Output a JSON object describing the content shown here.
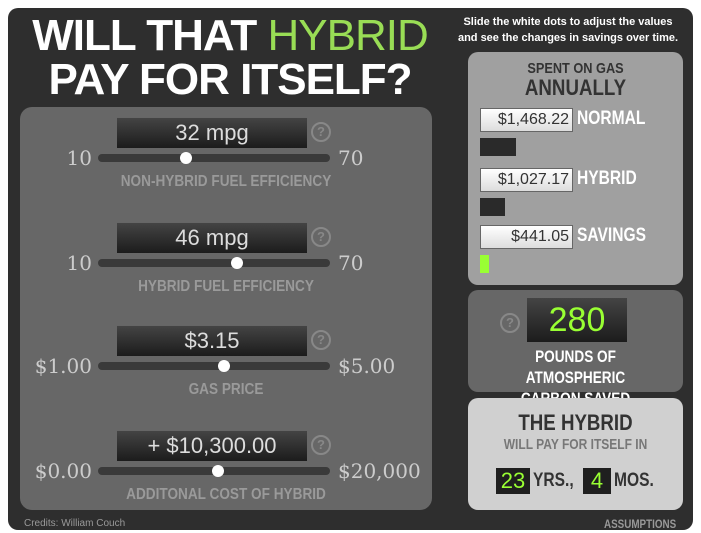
{
  "header": {
    "title_start": "WILL THAT",
    "title_highlight": "HYBRID",
    "title_line2": "PAY FOR ITSELF?"
  },
  "instructions": [
    "Slide the white dots to adjust the values",
    "and see the changes in savings over time."
  ],
  "help_icon": "?",
  "sliders": [
    {
      "value": "32 mpg",
      "min": "10",
      "max": "70",
      "label": "NON-HYBRID FUEL EFFICIENCY"
    },
    {
      "value": "46 mpg",
      "min": "10",
      "max": "70",
      "label": "HYBRID FUEL EFFICIENCY"
    },
    {
      "value": "$3.15",
      "min": "$1.00",
      "max": "$5.00",
      "label": "GAS PRICE"
    },
    {
      "value": "+ $10,300.00",
      "min": "$0.00",
      "max": "$20,000",
      "label": "ADDITONAL COST OF HYBRID"
    }
  ],
  "spent": {
    "heading": "SPENT ON GAS",
    "subheading": "ANNUALLY",
    "rows": [
      {
        "amount": "$1,468.22",
        "label": "NORMAL"
      },
      {
        "amount": "$1,027.17",
        "label": "HYBRID"
      },
      {
        "amount": "$441.05",
        "label": "SAVINGS"
      }
    ]
  },
  "carbon": {
    "value": "280",
    "label_line1": "POUNDS OF ATMOSPHERIC",
    "label_line2": "CARBON SAVED"
  },
  "payback": {
    "title": "THE HYBRID",
    "subtitle": "WILL  PAY FOR ITSELF IN",
    "years": "23",
    "years_unit": "YRS.,",
    "months": "4",
    "months_unit": "MOS."
  },
  "footer": {
    "credits": "Credits: William Couch",
    "assumptions": "ASSUMPTIONS"
  }
}
